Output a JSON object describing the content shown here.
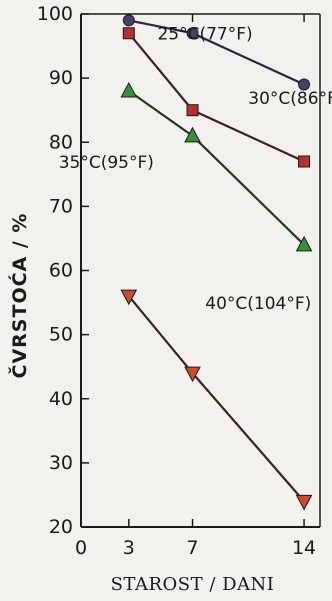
{
  "chart_data": {
    "type": "line",
    "xlabel": "STAROST / DANI",
    "ylabel": "ČVRSTOĆA / %",
    "xlim": [
      0,
      15
    ],
    "ylim": [
      20,
      100
    ],
    "x_ticks": [
      {
        "value": 0,
        "label": "0"
      },
      {
        "value": 3,
        "label": "3"
      },
      {
        "value": 7,
        "label": "7"
      },
      {
        "value": 14,
        "label": "14"
      }
    ],
    "y_ticks": [
      {
        "value": 20,
        "label": "20"
      },
      {
        "value": 30,
        "label": "30"
      },
      {
        "value": 40,
        "label": "40"
      },
      {
        "value": 50,
        "label": "50"
      },
      {
        "value": 60,
        "label": "60"
      },
      {
        "value": 70,
        "label": "70"
      },
      {
        "value": 80,
        "label": "80"
      },
      {
        "value": 90,
        "label": "90"
      },
      {
        "value": 100,
        "label": "100"
      }
    ],
    "grid": false,
    "series": [
      {
        "name": "25°C(77°F)",
        "x": [
          3,
          7,
          14
        ],
        "values": [
          99,
          97,
          89
        ],
        "marker": "circle",
        "color": "#4a3f6b",
        "line_color": "#2a2440",
        "label_anchor": {
          "x": 4.8,
          "y": 96
        }
      },
      {
        "name": "30°C(86°F)",
        "x": [
          3,
          7,
          14
        ],
        "values": [
          97,
          85,
          77
        ],
        "marker": "square",
        "color": "#b5302c",
        "line_color": "#3a2020",
        "label_anchor": {
          "x": 10.5,
          "y": 86
        }
      },
      {
        "name": "35°C(95°F)",
        "x": [
          3,
          7,
          14
        ],
        "values": [
          88,
          81,
          64
        ],
        "marker": "triangle-up",
        "color": "#3b8f3e",
        "line_color": "#1f3a1f",
        "label_anchor": {
          "x": -1.4,
          "y": 76
        }
      },
      {
        "name": "40°C(104°F)",
        "x": [
          3,
          7,
          14
        ],
        "values": [
          56,
          44,
          24
        ],
        "marker": "triangle-down",
        "color": "#c94a2c",
        "line_color": "#3a2418",
        "label_anchor": {
          "x": 7.8,
          "y": 54
        }
      }
    ]
  }
}
